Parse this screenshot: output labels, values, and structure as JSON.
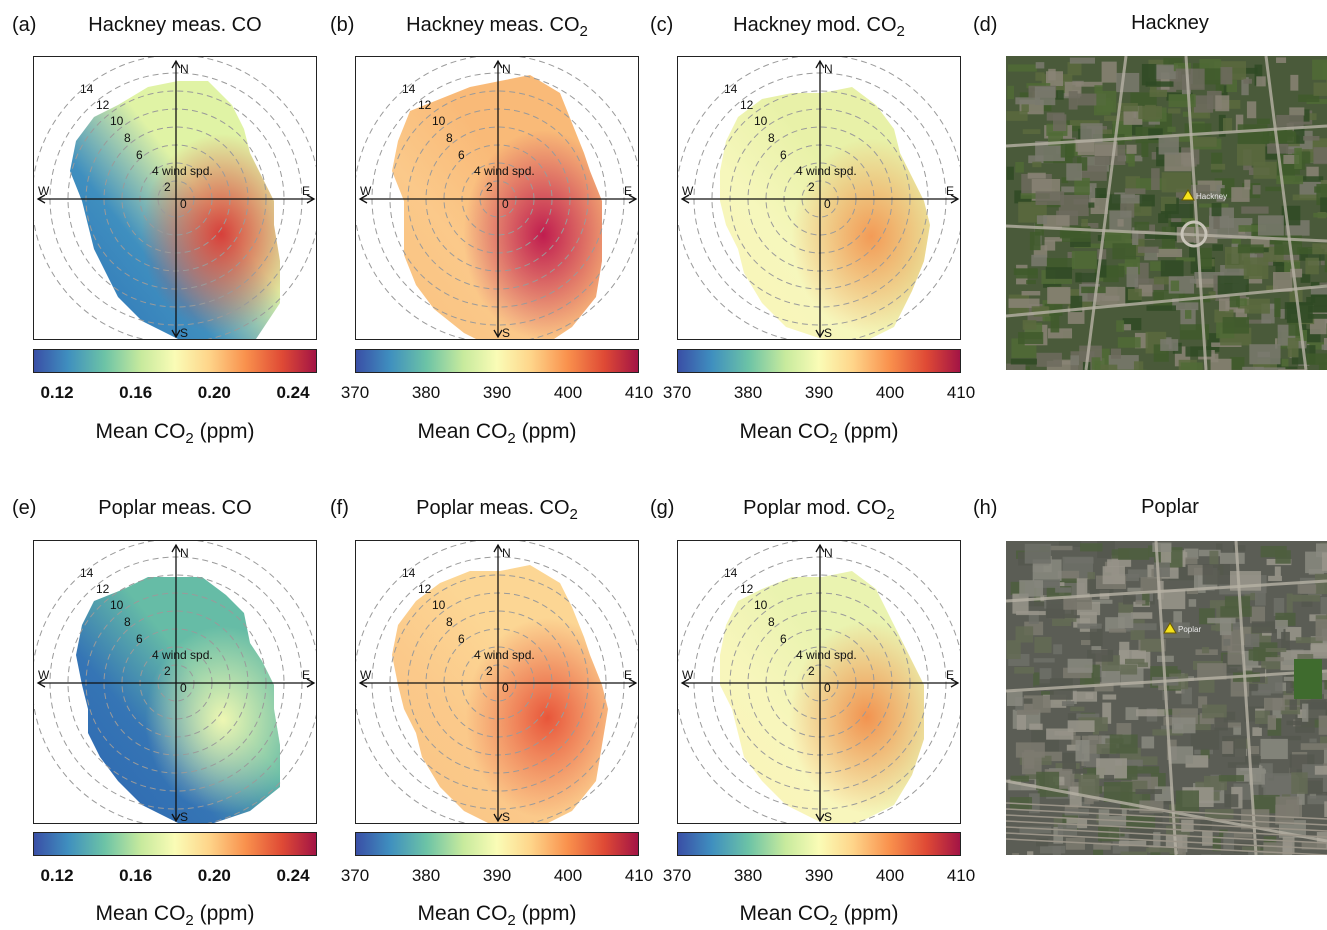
{
  "panels": [
    {
      "id": "a",
      "label": "(a)",
      "title": "Hackney meas. CO",
      "title_sub": "",
      "ticks": [
        "0.12",
        "0.16",
        "0.20",
        "0.24"
      ],
      "tick_bold": true,
      "cblabel_main": "Mean CO",
      "cblabel_sub": "2",
      "cblabel_end": " (ppm)"
    },
    {
      "id": "b",
      "label": "(b)",
      "title": "Hackney meas. CO",
      "title_sub": "2",
      "ticks": [
        "370",
        "380",
        "390",
        "400",
        "410"
      ],
      "tick_bold": false,
      "cblabel_main": "Mean CO",
      "cblabel_sub": "2",
      "cblabel_end": " (ppm)"
    },
    {
      "id": "c",
      "label": "(c)",
      "title": "Hackney mod. CO",
      "title_sub": "2",
      "ticks": [
        "370",
        "380",
        "390",
        "400",
        "410"
      ],
      "tick_bold": false,
      "cblabel_main": "Mean CO",
      "cblabel_sub": "2",
      "cblabel_end": " (ppm)"
    },
    {
      "id": "e",
      "label": "(e)",
      "title": "Poplar meas. CO",
      "title_sub": "",
      "ticks": [
        "0.12",
        "0.16",
        "0.20",
        "0.24"
      ],
      "tick_bold": true,
      "cblabel_main": "Mean CO",
      "cblabel_sub": "2",
      "cblabel_end": " (ppm)"
    },
    {
      "id": "f",
      "label": "(f)",
      "title": "Poplar meas. CO",
      "title_sub": "2",
      "ticks": [
        "370",
        "380",
        "390",
        "400",
        "410"
      ],
      "tick_bold": false,
      "cblabel_main": "Mean CO",
      "cblabel_sub": "2",
      "cblabel_end": " (ppm)"
    },
    {
      "id": "g",
      "label": "(g)",
      "title": "Poplar mod. CO",
      "title_sub": "2",
      "ticks": [
        "370",
        "380",
        "390",
        "400",
        "410"
      ],
      "tick_bold": false,
      "cblabel_main": "Mean CO",
      "cblabel_sub": "2",
      "cblabel_end": " (ppm)"
    }
  ],
  "maps": [
    {
      "id": "d",
      "label": "(d)",
      "title": "Hackney",
      "place_label": "Hackney"
    },
    {
      "id": "h",
      "label": "(h)",
      "title": "Poplar",
      "place_label": "Poplar"
    }
  ],
  "polar": {
    "compass": [
      "N",
      "E",
      "S",
      "W"
    ],
    "ring_labels": [
      "0",
      "2",
      "4",
      "6",
      "8",
      "10",
      "12",
      "14"
    ],
    "wind_label": "wind spd."
  },
  "colors": {
    "spectral_low": "#3a4fa6",
    "spectral_mid": "#fafcb6",
    "spectral_high": "#a31445"
  },
  "chart_data": [
    {
      "type": "heatmap",
      "subtype": "polar",
      "panel": "a",
      "title": "Hackney meas. CO",
      "colorbar_range": [
        0.11,
        0.25
      ],
      "colorbar_ticks": [
        0.12,
        0.16,
        0.2,
        0.24
      ],
      "colorbar_label": "Mean CO2 (ppm)",
      "wind_speed_rings": [
        0,
        2,
        4,
        6,
        8,
        10,
        12,
        14
      ]
    },
    {
      "type": "heatmap",
      "subtype": "polar",
      "panel": "b",
      "title": "Hackney meas. CO2",
      "colorbar_range": [
        370,
        410
      ],
      "colorbar_ticks": [
        370,
        380,
        390,
        400,
        410
      ],
      "colorbar_label": "Mean CO2 (ppm)",
      "wind_speed_rings": [
        0,
        2,
        4,
        6,
        8,
        10,
        12,
        14
      ]
    },
    {
      "type": "heatmap",
      "subtype": "polar",
      "panel": "c",
      "title": "Hackney mod. CO2",
      "colorbar_range": [
        370,
        410
      ],
      "colorbar_ticks": [
        370,
        380,
        390,
        400,
        410
      ],
      "colorbar_label": "Mean CO2 (ppm)",
      "wind_speed_rings": [
        0,
        2,
        4,
        6,
        8,
        10,
        12,
        14
      ]
    },
    {
      "type": "heatmap",
      "subtype": "polar",
      "panel": "e",
      "title": "Poplar meas. CO",
      "colorbar_range": [
        0.11,
        0.25
      ],
      "colorbar_ticks": [
        0.12,
        0.16,
        0.2,
        0.24
      ],
      "colorbar_label": "Mean CO2 (ppm)",
      "wind_speed_rings": [
        0,
        2,
        4,
        6,
        8,
        10,
        12,
        14
      ]
    },
    {
      "type": "heatmap",
      "subtype": "polar",
      "panel": "f",
      "title": "Poplar meas. CO2",
      "colorbar_range": [
        370,
        410
      ],
      "colorbar_ticks": [
        370,
        380,
        390,
        400,
        410
      ],
      "colorbar_label": "Mean CO2 (ppm)",
      "wind_speed_rings": [
        0,
        2,
        4,
        6,
        8,
        10,
        12,
        14
      ]
    },
    {
      "type": "heatmap",
      "subtype": "polar",
      "panel": "g",
      "title": "Poplar mod. CO2",
      "colorbar_range": [
        370,
        410
      ],
      "colorbar_ticks": [
        370,
        380,
        390,
        400,
        410
      ],
      "colorbar_label": "Mean CO2 (ppm)",
      "wind_speed_rings": [
        0,
        2,
        4,
        6,
        8,
        10,
        12,
        14
      ]
    }
  ]
}
